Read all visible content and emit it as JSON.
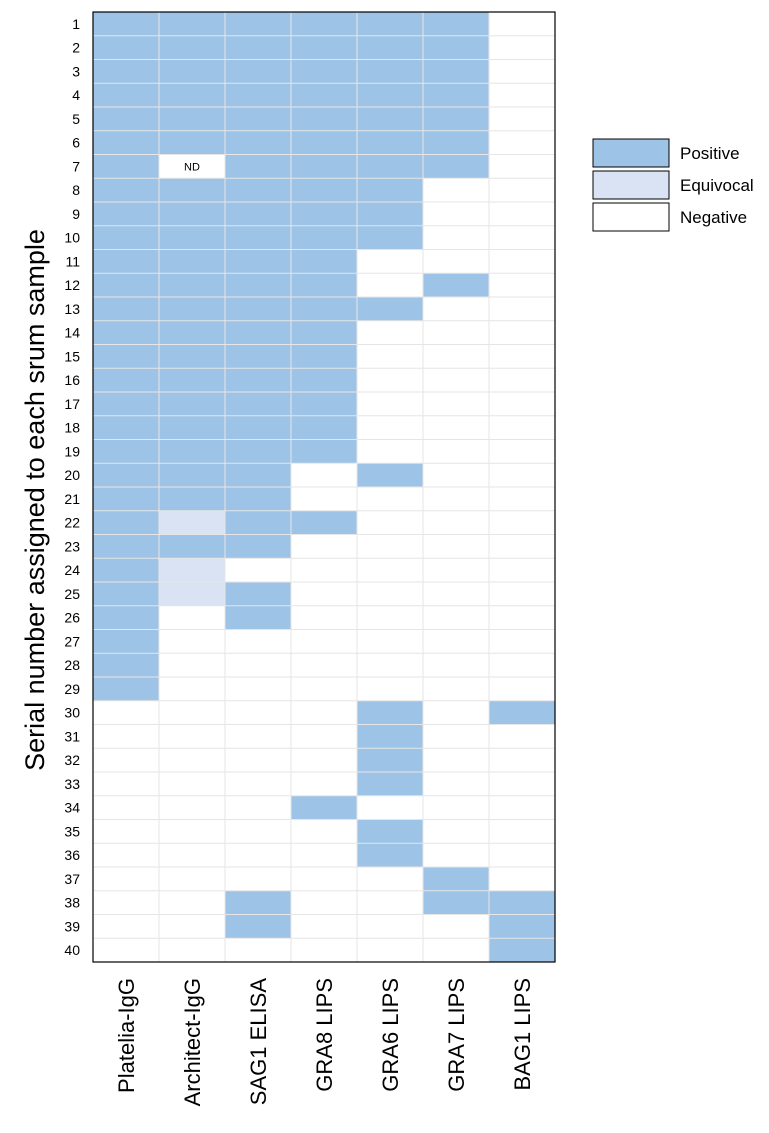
{
  "chart_data": {
    "type": "heatmap",
    "ylabel": "Serial number assigned to each srum sample",
    "columns": [
      "Platelia-IgG",
      "Architect-IgG",
      "SAG1 ELISA",
      "GRA8 LIPS",
      "GRA6 LIPS",
      "GRA7 LIPS",
      "BAG1 LIPS"
    ],
    "rows": [
      "1",
      "2",
      "3",
      "4",
      "5",
      "6",
      "7",
      "8",
      "9",
      "10",
      "11",
      "12",
      "13",
      "14",
      "15",
      "16",
      "17",
      "18",
      "19",
      "20",
      "21",
      "22",
      "23",
      "24",
      "25",
      "26",
      "27",
      "28",
      "29",
      "30",
      "31",
      "32",
      "33",
      "34",
      "35",
      "36",
      "37",
      "38",
      "39",
      "40"
    ],
    "legend": [
      {
        "key": "P",
        "label": "Positive",
        "color": "#9dc3e6"
      },
      {
        "key": "E",
        "label": "Equivocal",
        "color": "#dae3f3"
      },
      {
        "key": "N",
        "label": "Negative",
        "color": "#ffffff"
      }
    ],
    "not_determined_label": "ND",
    "grid_color": "#e6e6e6",
    "values": [
      [
        "P",
        "P",
        "P",
        "P",
        "P",
        "P",
        "N"
      ],
      [
        "P",
        "P",
        "P",
        "P",
        "P",
        "P",
        "N"
      ],
      [
        "P",
        "P",
        "P",
        "P",
        "P",
        "P",
        "N"
      ],
      [
        "P",
        "P",
        "P",
        "P",
        "P",
        "P",
        "N"
      ],
      [
        "P",
        "P",
        "P",
        "P",
        "P",
        "P",
        "N"
      ],
      [
        "P",
        "P",
        "P",
        "P",
        "P",
        "P",
        "N"
      ],
      [
        "P",
        "ND",
        "P",
        "P",
        "P",
        "P",
        "N"
      ],
      [
        "P",
        "P",
        "P",
        "P",
        "P",
        "N",
        "N"
      ],
      [
        "P",
        "P",
        "P",
        "P",
        "P",
        "N",
        "N"
      ],
      [
        "P",
        "P",
        "P",
        "P",
        "P",
        "N",
        "N"
      ],
      [
        "P",
        "P",
        "P",
        "P",
        "N",
        "N",
        "N"
      ],
      [
        "P",
        "P",
        "P",
        "P",
        "N",
        "P",
        "N"
      ],
      [
        "P",
        "P",
        "P",
        "P",
        "P",
        "N",
        "N"
      ],
      [
        "P",
        "P",
        "P",
        "P",
        "N",
        "N",
        "N"
      ],
      [
        "P",
        "P",
        "P",
        "P",
        "N",
        "N",
        "N"
      ],
      [
        "P",
        "P",
        "P",
        "P",
        "N",
        "N",
        "N"
      ],
      [
        "P",
        "P",
        "P",
        "P",
        "N",
        "N",
        "N"
      ],
      [
        "P",
        "P",
        "P",
        "P",
        "N",
        "N",
        "N"
      ],
      [
        "P",
        "P",
        "P",
        "P",
        "N",
        "N",
        "N"
      ],
      [
        "P",
        "P",
        "P",
        "N",
        "P",
        "N",
        "N"
      ],
      [
        "P",
        "P",
        "P",
        "N",
        "N",
        "N",
        "N"
      ],
      [
        "P",
        "E",
        "P",
        "P",
        "N",
        "N",
        "N"
      ],
      [
        "P",
        "P",
        "P",
        "N",
        "N",
        "N",
        "N"
      ],
      [
        "P",
        "E",
        "N",
        "N",
        "N",
        "N",
        "N"
      ],
      [
        "P",
        "E",
        "P",
        "N",
        "N",
        "N",
        "N"
      ],
      [
        "P",
        "N",
        "P",
        "N",
        "N",
        "N",
        "N"
      ],
      [
        "P",
        "N",
        "N",
        "N",
        "N",
        "N",
        "N"
      ],
      [
        "P",
        "N",
        "N",
        "N",
        "N",
        "N",
        "N"
      ],
      [
        "P",
        "N",
        "N",
        "N",
        "N",
        "N",
        "N"
      ],
      [
        "N",
        "N",
        "N",
        "N",
        "P",
        "N",
        "P"
      ],
      [
        "N",
        "N",
        "N",
        "N",
        "P",
        "N",
        "N"
      ],
      [
        "N",
        "N",
        "N",
        "N",
        "P",
        "N",
        "N"
      ],
      [
        "N",
        "N",
        "N",
        "N",
        "P",
        "N",
        "N"
      ],
      [
        "N",
        "N",
        "N",
        "P",
        "N",
        "N",
        "N"
      ],
      [
        "N",
        "N",
        "N",
        "N",
        "P",
        "N",
        "N"
      ],
      [
        "N",
        "N",
        "N",
        "N",
        "P",
        "N",
        "N"
      ],
      [
        "N",
        "N",
        "N",
        "N",
        "N",
        "P",
        "N"
      ],
      [
        "N",
        "N",
        "P",
        "N",
        "N",
        "P",
        "P"
      ],
      [
        "N",
        "N",
        "P",
        "N",
        "N",
        "N",
        "P"
      ],
      [
        "N",
        "N",
        "N",
        "N",
        "N",
        "N",
        "P"
      ]
    ]
  }
}
